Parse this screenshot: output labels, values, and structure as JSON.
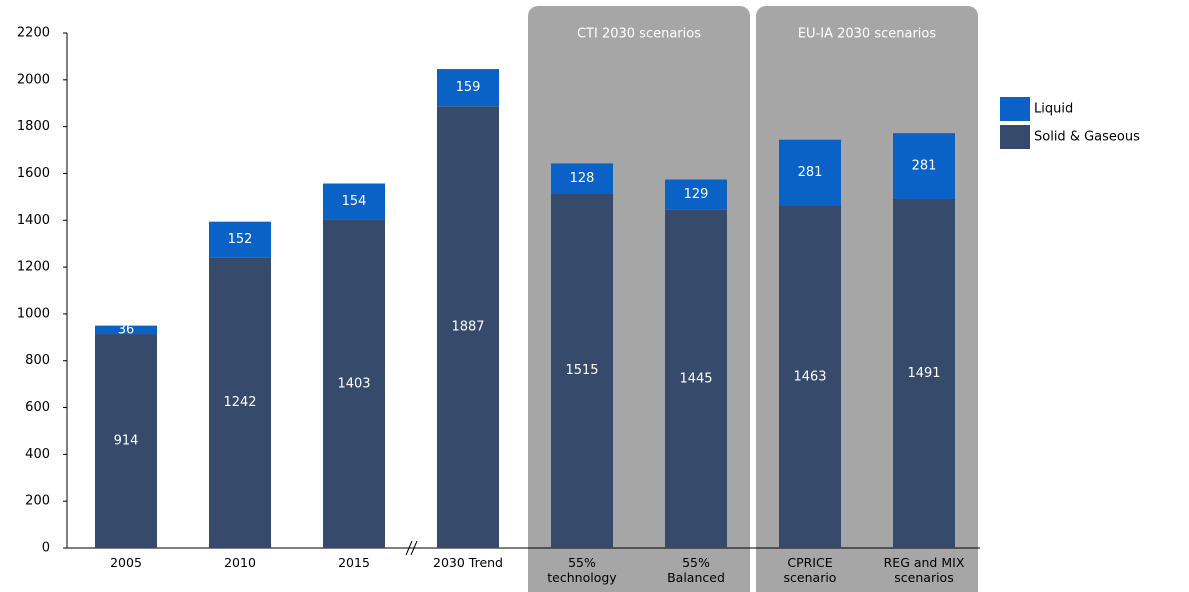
{
  "chart_data": {
    "type": "bar",
    "stacked": true,
    "categories": [
      "2005",
      "2010",
      "2015",
      "2030 Trend",
      "55% technology",
      "55% Balanced",
      "CPRICE scenario",
      "REG and MIX scenarios"
    ],
    "series": [
      {
        "name": "Solid & Gaseous",
        "color": "#364a6b",
        "values": [
          914,
          1242,
          1403,
          1887,
          1515,
          1445,
          1463,
          1491
        ]
      },
      {
        "name": "Liquid",
        "color": "#0b62c6",
        "values": [
          36,
          152,
          154,
          159,
          128,
          129,
          281,
          281
        ]
      }
    ],
    "groups": [
      {
        "label": "CTI 2030 scenarios"
      },
      {
        "label": "EU-IA 2030 scenarios"
      }
    ],
    "ylim": [
      0,
      2200
    ],
    "yticks": [
      0,
      200,
      400,
      600,
      800,
      1000,
      1200,
      1400,
      1600,
      1800,
      2000,
      2200
    ],
    "legend": "right"
  }
}
